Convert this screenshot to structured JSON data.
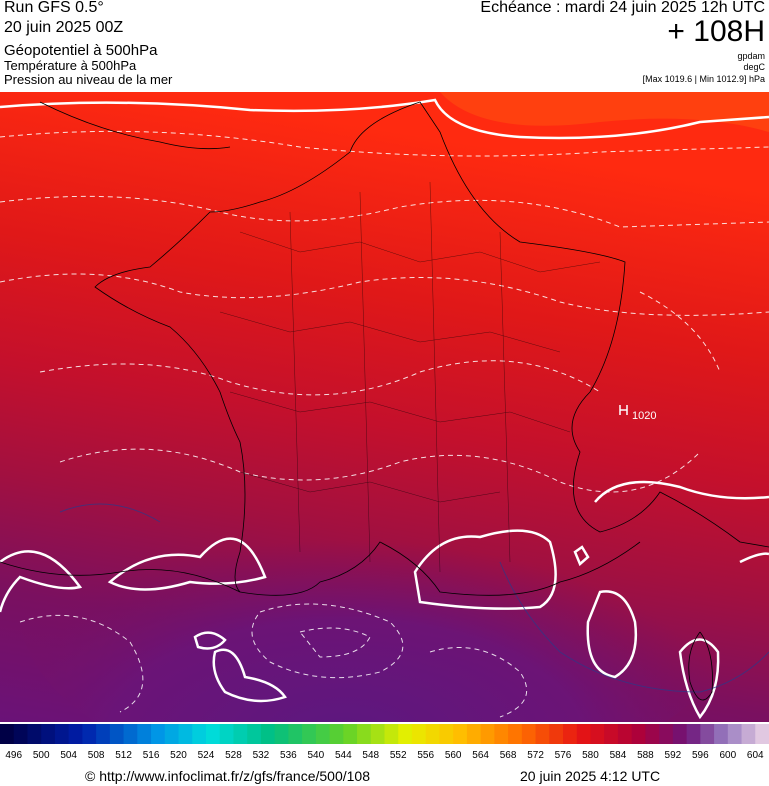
{
  "header": {
    "run": "Run GFS 0.5°",
    "run_date": "20 juin 2025 00Z",
    "layer1": "Géopotentiel à 500hPa",
    "layer2": "Température à 500hPa",
    "layer3": "Pression au niveau de la mer",
    "valid": "Echéance : mardi 24 juin 2025 12h UTC",
    "lead": "+ 108H",
    "unit1": "gpdam",
    "unit2": "degC",
    "pressure_range": "[Max 1019.6 | Min 1012.9] hPa"
  },
  "map": {
    "high_label": "1020"
  },
  "colorbar": {
    "labels": [
      496,
      500,
      504,
      508,
      512,
      516,
      520,
      524,
      528,
      532,
      536,
      540,
      544,
      548,
      552,
      556,
      560,
      564,
      568,
      572,
      576,
      580,
      584,
      588,
      592,
      596,
      600,
      604
    ]
  },
  "footer": {
    "url": "© http://www.infoclimat.fr/z/gfs/france/500/108",
    "timestamp": "20 juin 2025  4:12 UTC"
  }
}
